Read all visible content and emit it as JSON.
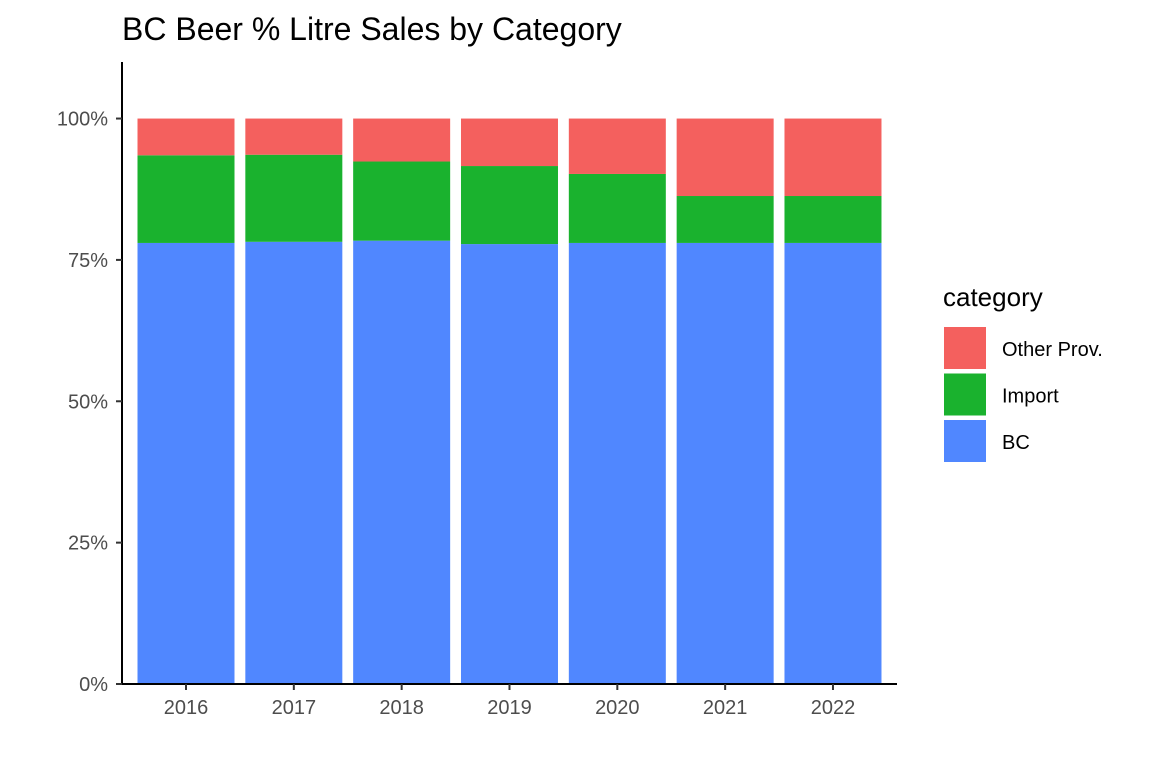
{
  "chart_data": {
    "type": "bar",
    "stacked": true,
    "title": "BC Beer % Litre Sales by Category",
    "xlabel": "",
    "ylabel": "",
    "categories": [
      "2016",
      "2017",
      "2018",
      "2019",
      "2020",
      "2021",
      "2022"
    ],
    "series": [
      {
        "name": "BC",
        "color": "#5087FF",
        "values": [
          0.78,
          0.782,
          0.784,
          0.778,
          0.78,
          0.78,
          0.78
        ]
      },
      {
        "name": "Import",
        "color": "#1AB22E",
        "values": [
          0.155,
          0.154,
          0.14,
          0.138,
          0.122,
          0.083,
          0.083
        ]
      },
      {
        "name": "Other Prov.",
        "color": "#F4605E",
        "values": [
          0.065,
          0.064,
          0.076,
          0.084,
          0.098,
          0.137,
          0.137
        ]
      }
    ],
    "ylim": [
      0,
      1.1
    ],
    "yticks": [
      0,
      0.25,
      0.5,
      0.75,
      1.0
    ],
    "ytick_labels": [
      "0%",
      "25%",
      "50%",
      "75%",
      "100%"
    ],
    "grid": false,
    "legend": {
      "title": "category",
      "position": "right",
      "order": [
        "Other Prov.",
        "Import",
        "BC"
      ]
    }
  }
}
